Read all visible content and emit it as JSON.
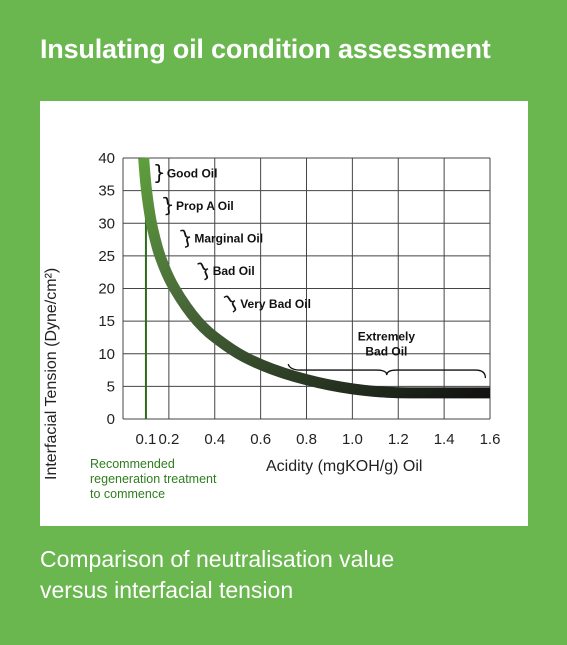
{
  "title": "Insulating oil condition assessment",
  "caption": [
    "Comparison of neutralisation value",
    "versus interfacial tension"
  ],
  "chart_data": {
    "type": "line",
    "xlabel": "Acidity (mgKOH/g) Oil",
    "ylabel": "Interfacial Tension (Dyne/cm²)",
    "xlim": [
      0,
      1.6
    ],
    "ylim": [
      0,
      40
    ],
    "x_ticks": [
      0.1,
      0.2,
      0.4,
      0.6,
      0.8,
      1.0,
      1.2,
      1.4,
      1.6
    ],
    "x_tick_labels": [
      "0.1",
      "0.2",
      "0.4",
      "0.6",
      "0.8",
      "1.0",
      "1.2",
      "1.4",
      "1.6"
    ],
    "y_ticks": [
      0,
      5,
      10,
      15,
      20,
      25,
      30,
      35,
      40
    ],
    "grid": true,
    "series": [
      {
        "x": [
          0.09,
          0.1,
          0.12,
          0.14,
          0.16,
          0.2,
          0.25,
          0.3,
          0.35,
          0.4,
          0.5,
          0.6,
          0.7,
          0.8,
          0.9,
          1.0,
          1.1,
          1.2,
          1.3,
          1.4,
          1.6
        ],
        "y": [
          40,
          35.5,
          30.5,
          27.5,
          25,
          21.5,
          18.5,
          16,
          14,
          12.5,
          10,
          8.3,
          7,
          6,
          5.2,
          4.6,
          4.2,
          4.0,
          4.0,
          4.0,
          4.0
        ]
      }
    ],
    "reference_line": {
      "x": 0.1,
      "label": [
        "Recommended",
        "regeneration treatment",
        "to commence"
      ]
    },
    "annotations": [
      {
        "text": [
          "Good Oil"
        ],
        "x": 0.13,
        "y": 37.5
      },
      {
        "text": [
          "Prop A Oil"
        ],
        "x": 0.17,
        "y": 32.5
      },
      {
        "text": [
          "Marginal Oil"
        ],
        "x": 0.25,
        "y": 27.5
      },
      {
        "text": [
          "Bad Oil"
        ],
        "x": 0.33,
        "y": 22.5
      },
      {
        "text": [
          "Very Bad Oil"
        ],
        "x": 0.45,
        "y": 17.5
      },
      {
        "text": [
          "Extremely",
          "Bad Oil"
        ],
        "x": 1.0,
        "y": 10
      }
    ],
    "colors": {
      "curve_start": "#5e9f3c",
      "curve_end": "#111111",
      "reference": "#2e6b1c",
      "grid": "#444444"
    }
  }
}
